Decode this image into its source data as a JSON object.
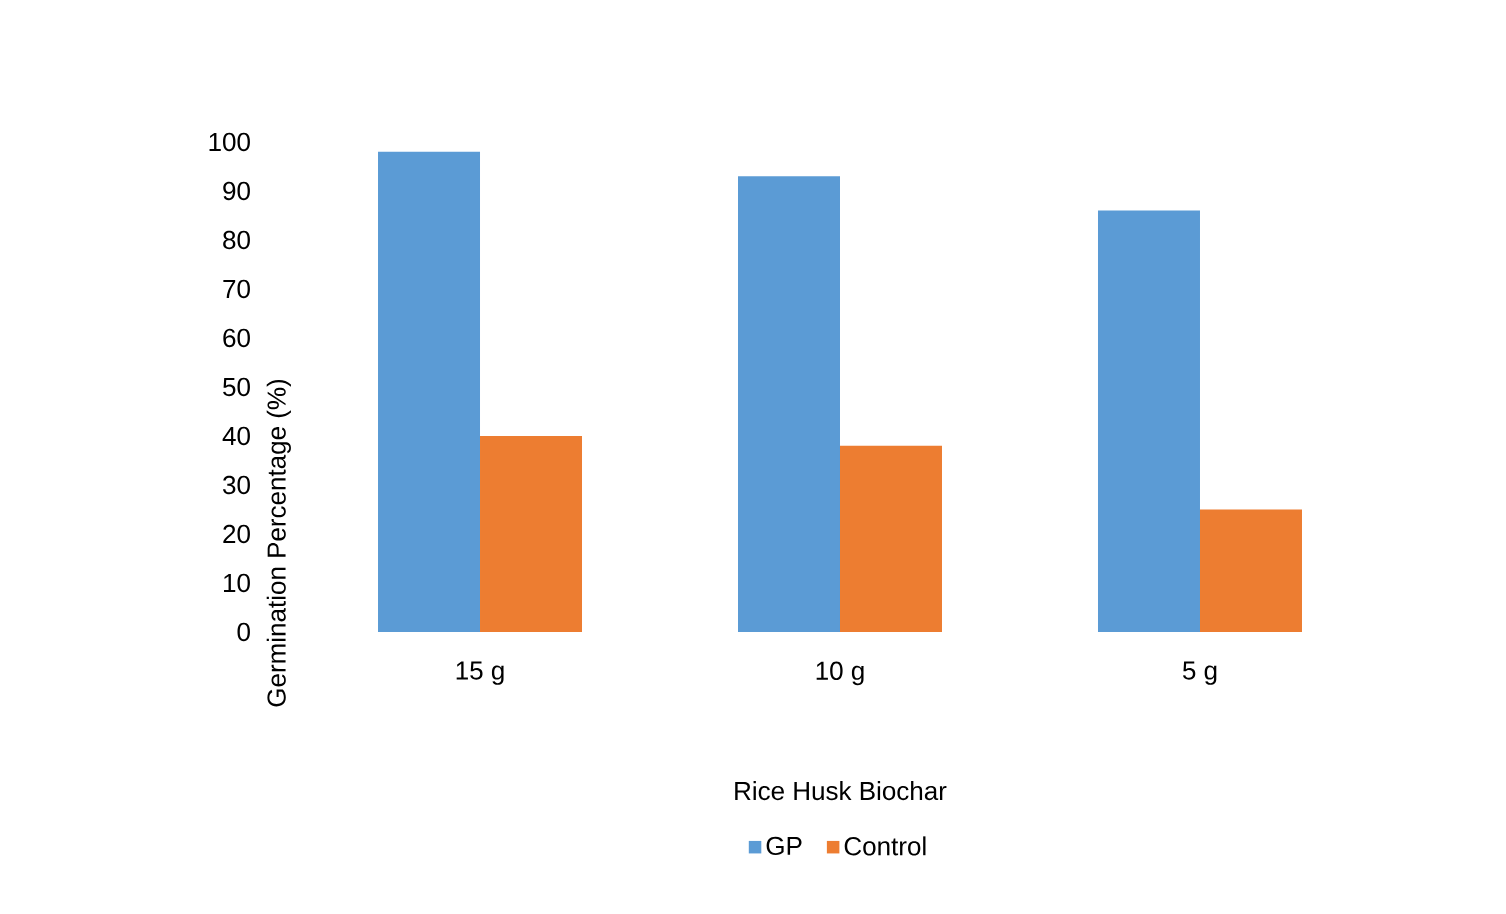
{
  "chart_data": {
    "type": "bar",
    "xlabel": "Rice Husk Biochar",
    "ylabel": "Germination Percentage (%)",
    "categories": [
      "15 g",
      "10 g",
      "5 g"
    ],
    "series": [
      {
        "name": "GP",
        "color": "#5b9bd5",
        "values": [
          98,
          93,
          86
        ]
      },
      {
        "name": "Control",
        "color": "#ed7d31",
        "values": [
          40,
          38,
          25
        ]
      }
    ],
    "ylim": [
      0,
      100
    ],
    "yticks": [
      0,
      10,
      20,
      30,
      40,
      50,
      60,
      70,
      80,
      90,
      100
    ],
    "legend": "bottom"
  }
}
